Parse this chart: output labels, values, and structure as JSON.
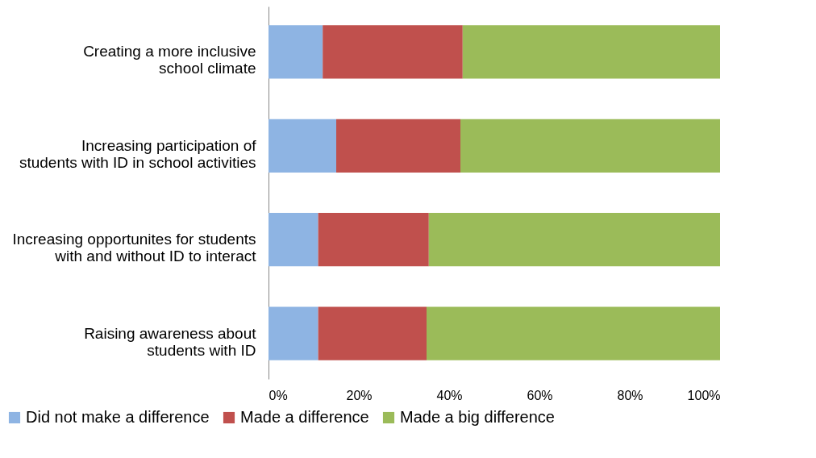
{
  "chart_data": {
    "type": "bar",
    "orientation": "horizontal",
    "stacked": true,
    "categories": [
      "Creating a more inclusive\nschool climate",
      "Increasing participation of\nstudents with ID in school activities",
      "Increasing opportunites for students\nwith and without ID to interact",
      "Raising awareness about\nstudents with ID"
    ],
    "series": [
      {
        "name": "Did not make a difference",
        "color": "#8eb4e3",
        "values": [
          12,
          15,
          11,
          11
        ]
      },
      {
        "name": "Made a difference",
        "color": "#c0504d",
        "values": [
          31,
          27.5,
          24.5,
          24
        ]
      },
      {
        "name": "Made a big difference",
        "color": "#9bbb59",
        "values": [
          57,
          57.5,
          64.5,
          65
        ]
      }
    ],
    "xlim": [
      0,
      100
    ],
    "xticks": [
      {
        "value": 0,
        "label": "0%"
      },
      {
        "value": 20,
        "label": "20%"
      },
      {
        "value": 40,
        "label": "40%"
      },
      {
        "value": 60,
        "label": "60%"
      },
      {
        "value": 80,
        "label": "80%"
      },
      {
        "value": 100,
        "label": "100%"
      }
    ],
    "legend": "bottom",
    "grid": false
  }
}
